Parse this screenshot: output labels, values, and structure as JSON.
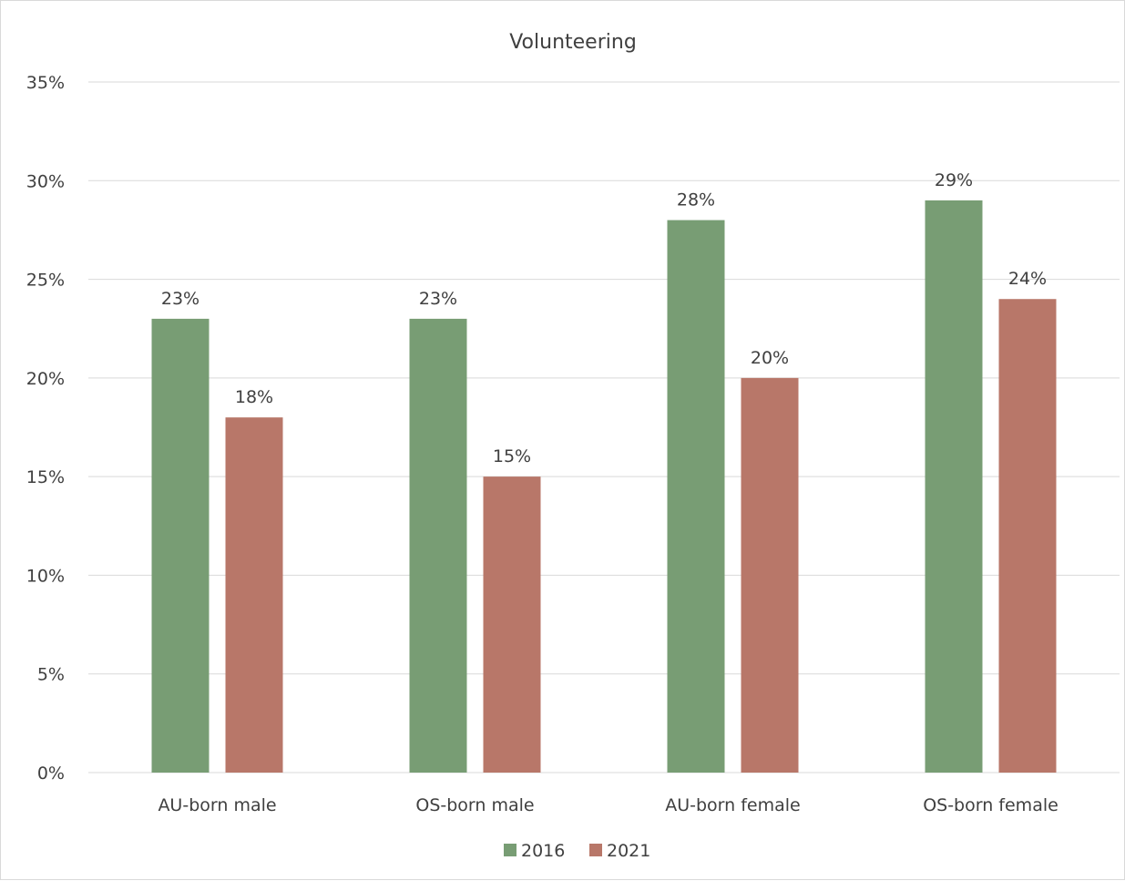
{
  "chart_data": {
    "type": "bar",
    "title": "Volunteering",
    "categories": [
      "AU-born male",
      "OS-born male",
      "AU-born female",
      "OS-born female"
    ],
    "series": [
      {
        "name": "2016",
        "values": [
          23,
          23,
          28,
          29
        ],
        "color": "#789d74"
      },
      {
        "name": "2021",
        "values": [
          18,
          15,
          20,
          24
        ],
        "color": "#b87769"
      }
    ],
    "value_format": "percent",
    "ylim": [
      0,
      35
    ],
    "y_ticks": [
      0,
      5,
      10,
      15,
      20,
      25,
      30,
      35
    ],
    "y_tick_labels": [
      "0%",
      "5%",
      "10%",
      "15%",
      "20%",
      "25%",
      "30%",
      "35%"
    ],
    "data_labels": true,
    "grid": true,
    "legend_position": "bottom",
    "xlabel": "",
    "ylabel": ""
  },
  "colors": {
    "gridline": "#d9d9d9",
    "text": "#404040",
    "border": "#d9d9d9"
  }
}
